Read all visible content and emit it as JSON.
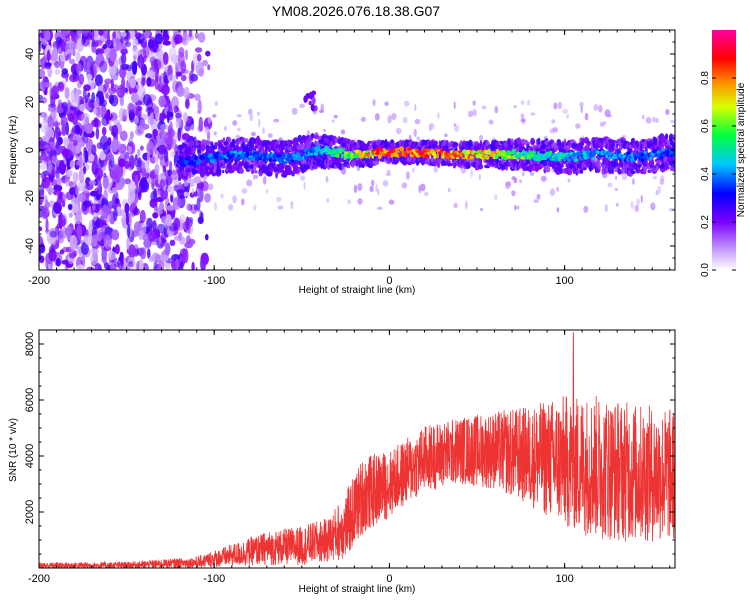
{
  "title": "YM08.2026.076.18.38.G07",
  "chart_data": [
    {
      "type": "heatmap",
      "xlabel": "Height of straight line (km)",
      "ylabel": "Frequency (Hz)",
      "xlim": [
        -200,
        163
      ],
      "ylim": [
        -50,
        50
      ],
      "xticks": [
        -200,
        -100,
        0,
        100
      ],
      "yticks": [
        -40,
        -20,
        0,
        20,
        40
      ],
      "colorbar": {
        "label": "Normalized spectral amplitude",
        "ticks": [
          0.0,
          0.2,
          0.4,
          0.6,
          0.8
        ],
        "range": [
          0,
          1
        ],
        "colormap": [
          "#ffffff",
          "#7b00ff",
          "#0000ff",
          "#00ffff",
          "#00ff00",
          "#ffff00",
          "#ff8000",
          "#ff0000",
          "#ff00ff"
        ]
      },
      "noise_region": {
        "x": [
          -200,
          -110
        ],
        "y": [
          -50,
          50
        ],
        "amplitude": 0.12
      },
      "signal_track": [
        {
          "x": -120,
          "y": -5,
          "amplitude": 0.35
        },
        {
          "x": -100,
          "y": -3,
          "amplitude": 0.4
        },
        {
          "x": -80,
          "y": -2,
          "amplitude": 0.42
        },
        {
          "x": -60,
          "y": -4,
          "amplitude": 0.4
        },
        {
          "x": -40,
          "y": 0,
          "amplitude": 0.45
        },
        {
          "x": -20,
          "y": -2,
          "amplitude": 0.7
        },
        {
          "x": 0,
          "y": -1,
          "amplitude": 0.95
        },
        {
          "x": 20,
          "y": -1,
          "amplitude": 0.9
        },
        {
          "x": 40,
          "y": -2,
          "amplitude": 0.85
        },
        {
          "x": 60,
          "y": -2,
          "amplitude": 0.75
        },
        {
          "x": 80,
          "y": -2,
          "amplitude": 0.6
        },
        {
          "x": 100,
          "y": -3,
          "amplitude": 0.5
        },
        {
          "x": 120,
          "y": -2,
          "amplitude": 0.45
        },
        {
          "x": 140,
          "y": -3,
          "amplitude": 0.42
        },
        {
          "x": 160,
          "y": -1,
          "amplitude": 0.4
        }
      ],
      "annotation_blob": {
        "x": -45,
        "y": 20,
        "amplitude": 0.2
      }
    },
    {
      "type": "line",
      "xlabel": "Height of straight line (km)",
      "ylabel": "SNR (10 * v/v)",
      "xlim": [
        -200,
        163
      ],
      "ylim": [
        0,
        8500
      ],
      "xticks": [
        -200,
        -100,
        0,
        100
      ],
      "yticks": [
        2000,
        4000,
        6000,
        8000
      ],
      "color": "#ee3333",
      "envelope": [
        {
          "x": -200,
          "mean": 80,
          "spread": 120
        },
        {
          "x": -150,
          "mean": 100,
          "spread": 120
        },
        {
          "x": -110,
          "mean": 200,
          "spread": 200
        },
        {
          "x": -90,
          "mean": 450,
          "spread": 400
        },
        {
          "x": -70,
          "mean": 700,
          "spread": 600
        },
        {
          "x": -50,
          "mean": 800,
          "spread": 700
        },
        {
          "x": -35,
          "mean": 1000,
          "spread": 800
        },
        {
          "x": -25,
          "mean": 1500,
          "spread": 1200
        },
        {
          "x": -15,
          "mean": 2600,
          "spread": 1400
        },
        {
          "x": 0,
          "mean": 3000,
          "spread": 1200
        },
        {
          "x": 20,
          "mean": 3900,
          "spread": 1200
        },
        {
          "x": 40,
          "mean": 4200,
          "spread": 1200
        },
        {
          "x": 60,
          "mean": 4200,
          "spread": 1400
        },
        {
          "x": 80,
          "mean": 4000,
          "spread": 1800
        },
        {
          "x": 100,
          "mean": 3800,
          "spread": 2400
        },
        {
          "x": 120,
          "mean": 3600,
          "spread": 2600
        },
        {
          "x": 140,
          "mean": 3400,
          "spread": 2500
        },
        {
          "x": 163,
          "mean": 3300,
          "spread": 2400
        }
      ],
      "peak": {
        "x": 105,
        "y": 8400
      }
    }
  ]
}
